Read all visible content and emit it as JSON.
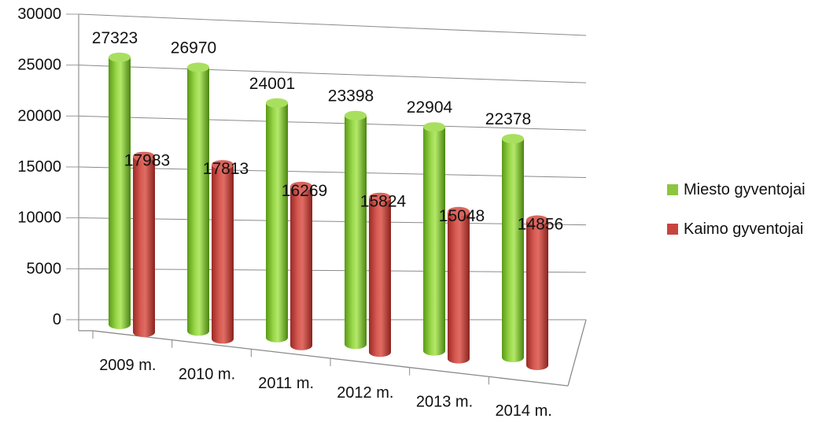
{
  "colors": {
    "green": "#8cc63f",
    "green_dark": "#4f8f12",
    "red": "#c8453f",
    "red_dark": "#8a211e"
  },
  "chart_data": {
    "type": "bar",
    "style": "3d-cylinder",
    "categories": [
      "2009 m.",
      "2010 m.",
      "2011 m.",
      "2012 m.",
      "2013 m.",
      "2014 m."
    ],
    "series": [
      {
        "name": "Miesto gyventojai",
        "color": "#8cc63f",
        "values": [
          27323,
          26970,
          24001,
          23398,
          22904,
          22378
        ]
      },
      {
        "name": "Kaimo gyventojai",
        "color": "#c8453f",
        "values": [
          17983,
          17813,
          16269,
          15824,
          15048,
          14856
        ]
      }
    ],
    "ylim": [
      0,
      30000
    ],
    "yticks": [
      "0",
      "5000",
      "10000",
      "15000",
      "20000",
      "25000",
      "30000"
    ],
    "grid": true,
    "legend": "right",
    "data_labels": true
  }
}
